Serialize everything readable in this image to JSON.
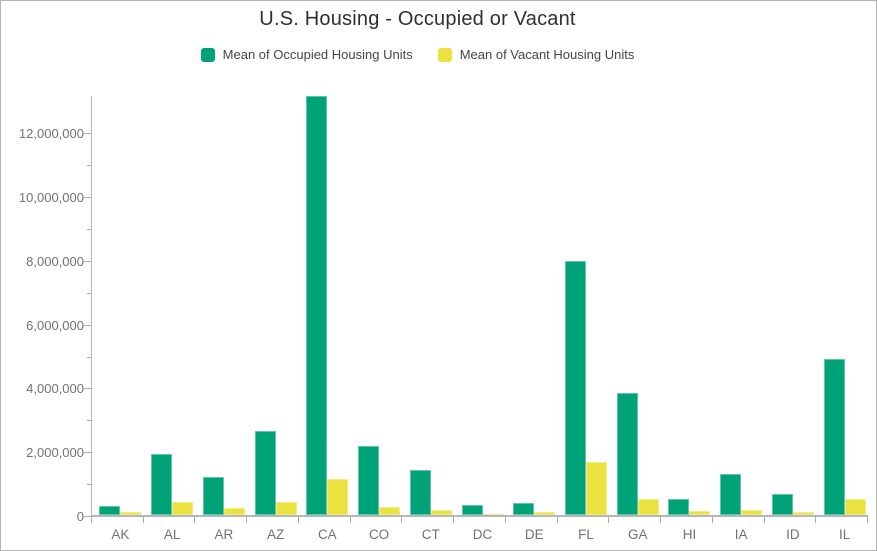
{
  "title": "U.S. Housing - Occupied or Vacant",
  "legend": {
    "items": [
      {
        "label": "Mean of Occupied Housing Units",
        "color": "#00a278"
      },
      {
        "label": "Mean of Vacant Housing Units",
        "color": "#ebe13f"
      }
    ]
  },
  "chart_data": {
    "type": "bar",
    "title": "U.S. Housing - Occupied or Vacant",
    "xlabel": "",
    "ylabel": "",
    "categories": [
      "AK",
      "AL",
      "AR",
      "AZ",
      "CA",
      "CO",
      "CT",
      "DC",
      "DE",
      "FL",
      "GA",
      "HI",
      "IA",
      "ID",
      "IL"
    ],
    "series": [
      {
        "name": "Mean of Occupied Housing Units",
        "color": "#00a278",
        "values": [
          270000,
          1900000,
          1180000,
          2640000,
          13150000,
          2150000,
          1410000,
          320000,
          390000,
          7950000,
          3840000,
          490000,
          1300000,
          650000,
          4900000
        ]
      },
      {
        "name": "Mean of Vacant Housing Units",
        "color": "#ebe13f",
        "values": [
          90000,
          400000,
          230000,
          410000,
          1130000,
          240000,
          170000,
          40000,
          90000,
          1650000,
          510000,
          120000,
          160000,
          100000,
          510000
        ]
      }
    ],
    "ylim": [
      0,
      13200000
    ],
    "ytick_major_interval": 2000000,
    "ytick_minor_interval": 1000000,
    "ytick_labels": [
      "0",
      "2,000,000",
      "4,000,000",
      "6,000,000",
      "8,000,000",
      "10,000,000",
      "12,000,000"
    ],
    "grid": false,
    "legend_position": "top-center"
  }
}
